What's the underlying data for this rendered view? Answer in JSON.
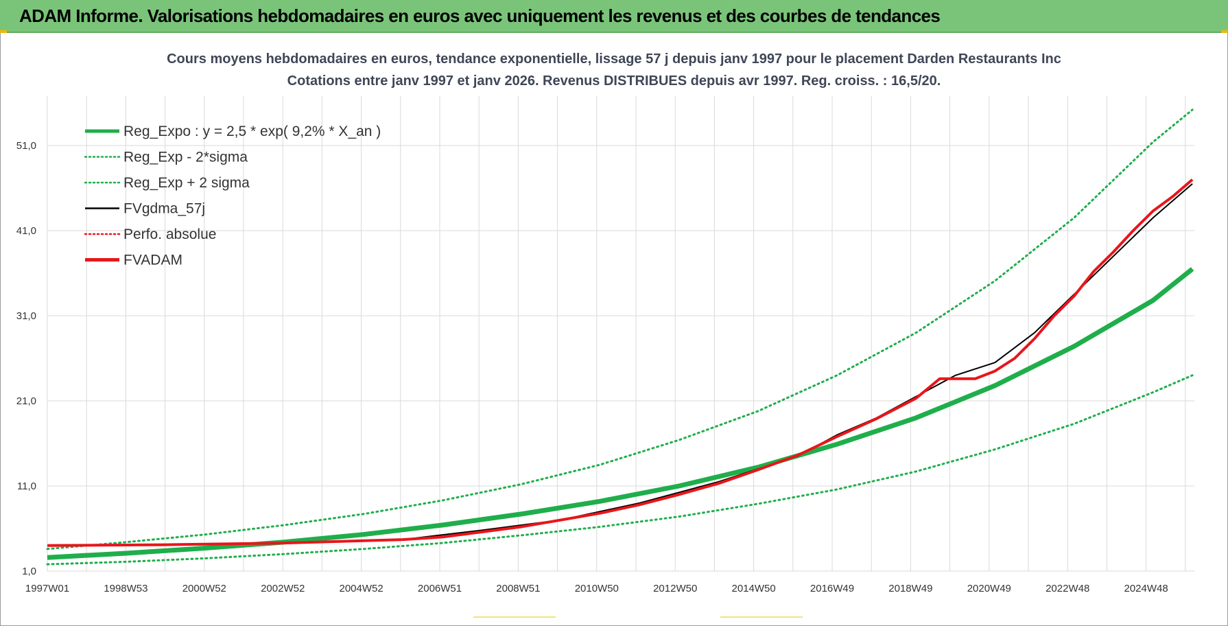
{
  "banner": {
    "title": "ADAM Informe. Valorisations hebdomadaires en euros avec uniquement les revenus et des courbes de tendances"
  },
  "colors": {
    "banner_bg": "#7ac47a",
    "green": "#1fae4b",
    "red": "#e8161b",
    "black": "#000000",
    "grid": "#d9d9d9"
  },
  "chart_data": {
    "type": "line",
    "title_line1": "Cours moyens hebdomadaires en euros, tendance exponentielle, lissage 57 j depuis janv 1997  pour le  placement Darden Restaurants Inc",
    "title_line2": "Cotations entre janv 1997 et janv 2026. Revenus DISTRIBUES depuis avr 1997.  Reg. croiss. : 16,5/20.",
    "x_tick_labels": [
      "1997W01",
      "1998W53",
      "2000W52",
      "2002W52",
      "2004W52",
      "2006W51",
      "2008W51",
      "2010W50",
      "2012W50",
      "2014W50",
      "2016W49",
      "2018W49",
      "2020W49",
      "2022W48",
      "2024W48"
    ],
    "x_range_years": [
      1997.0,
      2026.05
    ],
    "y_ticks": [
      1.0,
      11.0,
      21.0,
      31.0,
      41.0,
      51.0
    ],
    "y_tick_labels": [
      "1,0",
      "11,0",
      "21,0",
      "31,0",
      "41,0",
      "51,0"
    ],
    "ylim": [
      1.0,
      60.0
    ],
    "grid": true,
    "legend_position": "top-left",
    "legend": [
      {
        "name": "Reg_Expo : y = 2,5 * exp( 9,2% *  X_an )",
        "color": "#1fae4b",
        "style": "solid-thick"
      },
      {
        "name": "Reg_Exp - 2*sigma",
        "color": "#1fae4b",
        "style": "dotted"
      },
      {
        "name": "Reg_Exp + 2 sigma",
        "color": "#1fae4b",
        "style": "dotted"
      },
      {
        "name": "FVgdma_57j",
        "color": "#000000",
        "style": "solid"
      },
      {
        "name": "Perfo. absolue",
        "color": "#e8161b",
        "style": "dotted"
      },
      {
        "name": "FVADAM",
        "color": "#e8161b",
        "style": "solid-thick"
      }
    ],
    "series": [
      {
        "name": "Reg_Expo : y = 2,5 * exp( 9,2% *  X_an )",
        "x": [
          1997,
          1999,
          2001,
          2003,
          2005,
          2007,
          2009,
          2011,
          2013,
          2015,
          2017,
          2019,
          2021,
          2023,
          2025,
          2026
        ],
        "values": [
          2.6,
          3.1,
          3.7,
          4.4,
          5.3,
          6.4,
          7.7,
          9.2,
          11.0,
          13.2,
          15.9,
          19.0,
          22.8,
          27.4,
          32.8,
          36.5
        ]
      },
      {
        "name": "Reg_Exp - 2*sigma",
        "x": [
          1997,
          1999,
          2001,
          2003,
          2005,
          2007,
          2009,
          2011,
          2013,
          2015,
          2017,
          2019,
          2021,
          2023,
          2025,
          2026
        ],
        "values": [
          1.8,
          2.1,
          2.5,
          3.0,
          3.6,
          4.3,
          5.2,
          6.2,
          7.4,
          8.9,
          10.6,
          12.7,
          15.3,
          18.3,
          22.0,
          24.0
        ]
      },
      {
        "name": "Reg_Exp + 2 sigma",
        "x": [
          1997,
          1999,
          2001,
          2003,
          2005,
          2007,
          2009,
          2011,
          2013,
          2015,
          2017,
          2019,
          2021,
          2023,
          2025,
          2026
        ],
        "values": [
          3.6,
          4.4,
          5.3,
          6.4,
          7.7,
          9.3,
          11.2,
          13.5,
          16.4,
          19.8,
          24.0,
          29.0,
          35.1,
          42.5,
          51.4,
          55.2
        ]
      },
      {
        "name": "FVgdma_57j",
        "x": [
          1997,
          2000,
          2003,
          2006,
          2008,
          2010,
          2012,
          2014,
          2016,
          2017,
          2018,
          2019,
          2020,
          2021,
          2022,
          2023,
          2024,
          2025,
          2026
        ],
        "values": [
          4.0,
          4.1,
          4.3,
          4.7,
          5.8,
          7.0,
          9.0,
          11.5,
          14.5,
          17.0,
          19.0,
          21.5,
          24.0,
          25.5,
          29.0,
          33.5,
          38.0,
          42.5,
          46.5
        ]
      },
      {
        "name": "FVADAM",
        "x": [
          1997,
          2000,
          2003,
          2006,
          2007,
          2008,
          2009,
          2010,
          2011,
          2012,
          2013,
          2014,
          2015,
          2016,
          2017,
          2018,
          2019,
          2019.6,
          2020,
          2020.5,
          2021,
          2021.5,
          2022,
          2022.5,
          2023,
          2023.5,
          2024,
          2024.5,
          2025,
          2025.5,
          2026
        ],
        "values": [
          4.0,
          4.1,
          4.3,
          4.7,
          5.0,
          5.6,
          6.2,
          7.0,
          7.8,
          8.8,
          10.0,
          11.3,
          12.9,
          14.6,
          16.8,
          18.9,
          21.3,
          23.6,
          23.6,
          23.6,
          24.5,
          26.0,
          28.3,
          31.0,
          33.3,
          36.2,
          38.5,
          41.0,
          43.3,
          45.0,
          47.0
        ]
      }
    ]
  }
}
